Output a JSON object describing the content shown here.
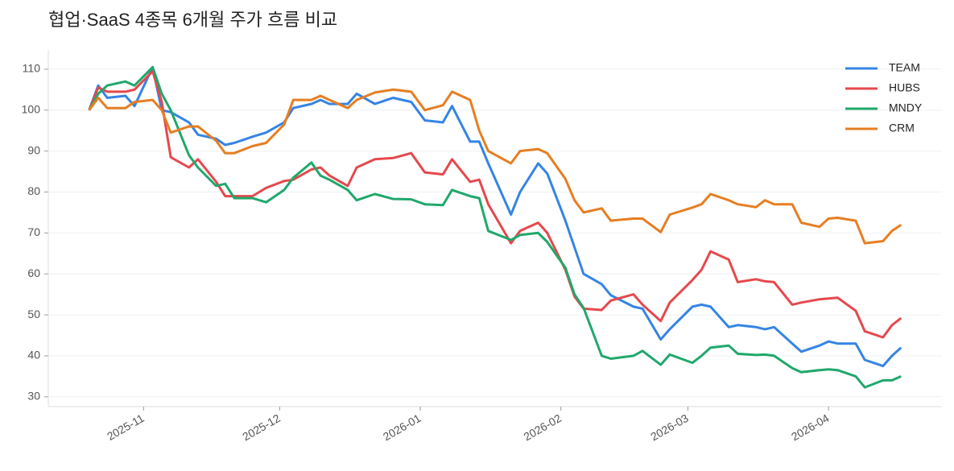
{
  "chart_data": {
    "type": "line",
    "title": "협업·SaaS 4종목 6개월 주가 흐름 비교",
    "x": [
      "2025-10-20",
      "2025-10-22",
      "2025-10-24",
      "2025-10-28",
      "2025-10-30",
      "2025-11-03",
      "2025-11-05",
      "2025-11-07",
      "2025-11-11",
      "2025-11-13",
      "2025-11-17",
      "2025-11-19",
      "2025-11-21",
      "2025-11-25",
      "2025-11-28",
      "2025-12-02",
      "2025-12-04",
      "2025-12-08",
      "2025-12-10",
      "2025-12-12",
      "2025-12-16",
      "2025-12-18",
      "2025-12-22",
      "2025-12-26",
      "2025-12-30",
      "2026-01-02",
      "2026-01-06",
      "2026-01-08",
      "2026-01-12",
      "2026-01-14",
      "2026-01-16",
      "2026-01-21",
      "2026-01-23",
      "2026-01-27",
      "2026-01-29",
      "2026-02-02",
      "2026-02-04",
      "2026-02-06",
      "2026-02-10",
      "2026-02-12",
      "2026-02-17",
      "2026-02-19",
      "2026-02-23",
      "2026-02-25",
      "2026-03-02",
      "2026-03-04",
      "2026-03-06",
      "2026-03-10",
      "2026-03-12",
      "2026-03-16",
      "2026-03-18",
      "2026-03-20",
      "2026-03-24",
      "2026-03-26",
      "2026-03-30",
      "2026-04-01",
      "2026-04-03",
      "2026-04-07",
      "2026-04-09",
      "2026-04-13",
      "2026-04-15",
      "2026-04-17"
    ],
    "series": [
      {
        "name": "TEAM",
        "color": "#3584e4",
        "values": [
          100,
          106,
          103,
          103.5,
          101,
          110.5,
          100,
          99.5,
          97,
          94,
          93,
          91.5,
          92,
          93.5,
          94.5,
          97,
          100.5,
          101.5,
          102.5,
          101.5,
          101.5,
          104,
          101.5,
          103,
          102,
          97.5,
          97,
          101,
          92.3,
          92.3,
          87,
          74.5,
          80,
          87,
          84.5,
          73,
          66.5,
          60,
          57.5,
          54.8,
          52,
          51.5,
          44,
          46.5,
          52,
          52.5,
          52,
          47,
          47.5,
          47,
          46.5,
          47,
          43,
          41,
          42.5,
          43.5,
          43,
          43,
          39,
          37.5,
          40,
          42
        ]
      },
      {
        "name": "HUBS",
        "color": "#e5484d",
        "values": [
          100,
          105.5,
          104.5,
          104.5,
          105,
          109.5,
          102,
          88.5,
          86,
          88,
          82.5,
          79,
          79,
          79,
          81,
          82.7,
          83,
          85.5,
          86,
          84,
          81.5,
          86,
          88,
          88.3,
          89.5,
          84.8,
          84.3,
          88,
          82.5,
          83,
          77,
          67.5,
          70.5,
          72.5,
          70,
          61,
          54.5,
          51.5,
          51.2,
          53.5,
          55,
          52.5,
          48.5,
          53,
          58.5,
          61,
          65.5,
          63.5,
          58,
          58.7,
          58.2,
          58,
          52.5,
          53,
          53.8,
          54,
          54.2,
          51,
          46,
          44.5,
          47.5,
          49.2
        ]
      },
      {
        "name": "MNDY",
        "color": "#20a86b",
        "values": [
          100,
          104,
          106,
          107,
          106,
          110.5,
          104,
          100,
          89,
          86,
          81.5,
          82,
          78.5,
          78.5,
          77.5,
          80.5,
          83.5,
          87.2,
          84,
          83,
          80.5,
          78,
          79.5,
          78.3,
          78.2,
          77,
          76.8,
          80.5,
          79,
          78.5,
          70.5,
          68.3,
          69.5,
          70,
          67.8,
          61.5,
          55,
          51.7,
          40,
          39.3,
          40,
          41.2,
          37.8,
          40.3,
          38.3,
          40,
          42,
          42.5,
          40.5,
          40.2,
          40.3,
          40,
          37,
          36,
          36.5,
          36.7,
          36.5,
          35,
          32.3,
          34,
          34,
          35
        ]
      },
      {
        "name": "CRM",
        "color": "#e67e22",
        "values": [
          100,
          103,
          100.5,
          100.5,
          102,
          102.5,
          100,
          94.5,
          96,
          96,
          92.5,
          89.5,
          89.5,
          91.2,
          92,
          96.5,
          102.5,
          102.5,
          103.5,
          102.5,
          100.5,
          102.5,
          104.3,
          105,
          104.5,
          100,
          101.2,
          104.5,
          102.5,
          95,
          90,
          87,
          90,
          90.5,
          89.5,
          83.2,
          78,
          75,
          76,
          73,
          73.5,
          73.5,
          70.2,
          74.5,
          76.2,
          77,
          79.5,
          78,
          77,
          76.3,
          78,
          77,
          77,
          72.5,
          71.5,
          73.5,
          73.7,
          73,
          67.5,
          68,
          70.5,
          72
        ]
      }
    ],
    "xlim": [
      "2025-10-11",
      "2026-04-26"
    ],
    "xticks": [
      {
        "value": "2025-11-01",
        "label": "2025-11"
      },
      {
        "value": "2025-12-01",
        "label": "2025-12"
      },
      {
        "value": "2026-01-01",
        "label": "2026-01"
      },
      {
        "value": "2026-02-01",
        "label": "2026-02"
      },
      {
        "value": "2026-03-01",
        "label": "2026-03"
      },
      {
        "value": "2026-04-01",
        "label": "2026-04"
      }
    ],
    "ylim": [
      27.6,
      114.7
    ],
    "yticks": [
      30,
      40,
      50,
      60,
      70,
      80,
      90,
      100,
      110
    ],
    "grid": true,
    "legend": "upper right"
  }
}
